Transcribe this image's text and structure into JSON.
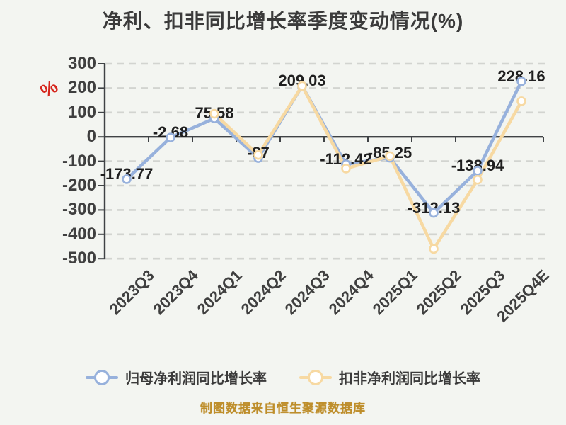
{
  "page": {
    "background": "#F3F5F1"
  },
  "chart_data": {
    "type": "line",
    "title": "净利、扣非同比增长率季度变动情况(%)",
    "y_unit": "%",
    "categories": [
      "2023Q3",
      "2023Q4",
      "2024Q1",
      "2024Q2",
      "2024Q3",
      "2024Q4",
      "2025Q1",
      "2025Q2",
      "2025Q3",
      "2025Q4E"
    ],
    "series": [
      {
        "name": "归母净利润同比增长率",
        "color": "#97B1DC",
        "values": [
          -173.77,
          -2.68,
          75.58,
          -87,
          209.03,
          -112.42,
          -85.25,
          -312.13,
          -138.94,
          228.16
        ]
      },
      {
        "name": "扣非净利润同比增长率",
        "color": "#F7D9A2",
        "values": [
          null,
          null,
          95,
          -74,
          209.03,
          -130,
          -79,
          -460,
          -176,
          146
        ]
      }
    ],
    "point_labels": [
      "-173.77",
      "-2.68",
      "75.58",
      "-87",
      "209.03",
      "-112.42",
      "-85.25",
      "-312.13",
      "-138.94",
      "228.16"
    ],
    "ylim": [
      -500,
      300
    ],
    "ytick_step": 100,
    "yticks": [
      "300",
      "200",
      "100",
      "0",
      "-100",
      "-200",
      "-300",
      "-400",
      "-500"
    ],
    "grid": "dashed",
    "legend_position": "bottom",
    "marker_fill": "#FFFFFF",
    "label_color": "#1F1F1F",
    "axis_color": "#3F4245",
    "grid_color": "#D2D4D0",
    "unit_color": "#D6261D"
  },
  "footer": {
    "text": "制图数据来自恒生聚源数据库",
    "color": "#BE8E2B"
  }
}
